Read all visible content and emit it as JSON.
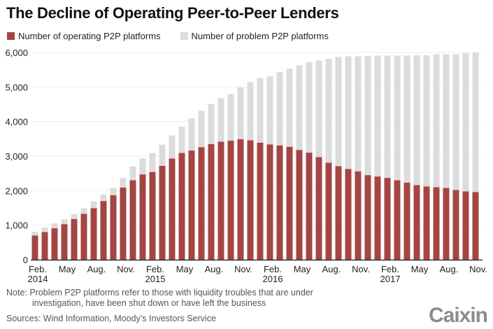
{
  "chart_data": {
    "type": "bar",
    "stacked": true,
    "title": "The Decline of Operating Peer-to-Peer Lenders",
    "xlabel": "",
    "ylabel": "",
    "ylim": [
      0,
      6000
    ],
    "yticks": [
      0,
      1000,
      2000,
      3000,
      4000,
      5000,
      6000
    ],
    "ytick_labels": [
      "0",
      "1,000",
      "2,000",
      "3,000",
      "4,000",
      "5,000",
      "6,000"
    ],
    "grid": true,
    "legend_position": "top-left",
    "categories": [
      "Feb 2014",
      "Mar 2014",
      "Apr 2014",
      "May 2014",
      "Jun 2014",
      "Jul 2014",
      "Aug 2014",
      "Sep 2014",
      "Oct 2014",
      "Nov 2014",
      "Dec 2014",
      "Jan 2015",
      "Feb 2015",
      "Mar 2015",
      "Apr 2015",
      "May 2015",
      "Jun 2015",
      "Jul 2015",
      "Aug 2015",
      "Sep 2015",
      "Oct 2015",
      "Nov 2015",
      "Dec 2015",
      "Jan 2016",
      "Feb 2016",
      "Mar 2016",
      "Apr 2016",
      "May 2016",
      "Jun 2016",
      "Jul 2016",
      "Aug 2016",
      "Sep 2016",
      "Oct 2016",
      "Nov 2016",
      "Dec 2016",
      "Jan 2017",
      "Feb 2017",
      "Mar 2017",
      "Apr 2017",
      "May 2017",
      "Jun 2017",
      "Jul 2017",
      "Aug 2017",
      "Sep 2017",
      "Oct 2017",
      "Nov 2017"
    ],
    "xtick_labels": [
      {
        "index": 0,
        "month": "Feb.",
        "year": "2014"
      },
      {
        "index": 3,
        "month": "May",
        "year": ""
      },
      {
        "index": 6,
        "month": "Aug.",
        "year": ""
      },
      {
        "index": 9,
        "month": "Nov.",
        "year": ""
      },
      {
        "index": 12,
        "month": "Feb.",
        "year": "2015"
      },
      {
        "index": 15,
        "month": "May",
        "year": ""
      },
      {
        "index": 18,
        "month": "Aug.",
        "year": ""
      },
      {
        "index": 21,
        "month": "Nov.",
        "year": ""
      },
      {
        "index": 24,
        "month": "Feb.",
        "year": "2016"
      },
      {
        "index": 27,
        "month": "May",
        "year": ""
      },
      {
        "index": 30,
        "month": "Aug.",
        "year": ""
      },
      {
        "index": 33,
        "month": "Nov.",
        "year": ""
      },
      {
        "index": 36,
        "month": "Feb.",
        "year": "2017"
      },
      {
        "index": 39,
        "month": "May",
        "year": ""
      },
      {
        "index": 42,
        "month": "Aug.",
        "year": ""
      },
      {
        "index": 45,
        "month": "Nov.",
        "year": ""
      }
    ],
    "series": [
      {
        "name": "Number of operating P2P platforms",
        "color": "#a54543",
        "values": [
          700,
          800,
          910,
          1030,
          1180,
          1330,
          1490,
          1700,
          1870,
          2090,
          2300,
          2470,
          2540,
          2720,
          2930,
          3090,
          3160,
          3260,
          3350,
          3420,
          3450,
          3490,
          3460,
          3390,
          3340,
          3310,
          3270,
          3180,
          3100,
          2970,
          2810,
          2710,
          2630,
          2560,
          2450,
          2410,
          2370,
          2300,
          2230,
          2160,
          2120,
          2100,
          2080,
          2020,
          1980,
          1960
        ]
      },
      {
        "name": "Number of problem P2P platforms",
        "color": "#dcdcdc",
        "values": [
          110,
          130,
          140,
          140,
          140,
          160,
          200,
          190,
          210,
          280,
          400,
          470,
          550,
          610,
          670,
          760,
          930,
          1050,
          1160,
          1260,
          1350,
          1500,
          1690,
          1870,
          1970,
          2120,
          2260,
          2450,
          2620,
          2800,
          3010,
          3160,
          3260,
          3330,
          3450,
          3500,
          3540,
          3610,
          3680,
          3760,
          3800,
          3850,
          3870,
          3930,
          4000,
          4040
        ]
      }
    ]
  },
  "note_line1": "Note: Problem P2P platforms refer to those with liquidity troubles that are under",
  "note_line2": "investigation, have been shut down or have left the business",
  "source": "Sources: Wind Information, Moody’s Investors Service",
  "logo_text": "Caixin"
}
